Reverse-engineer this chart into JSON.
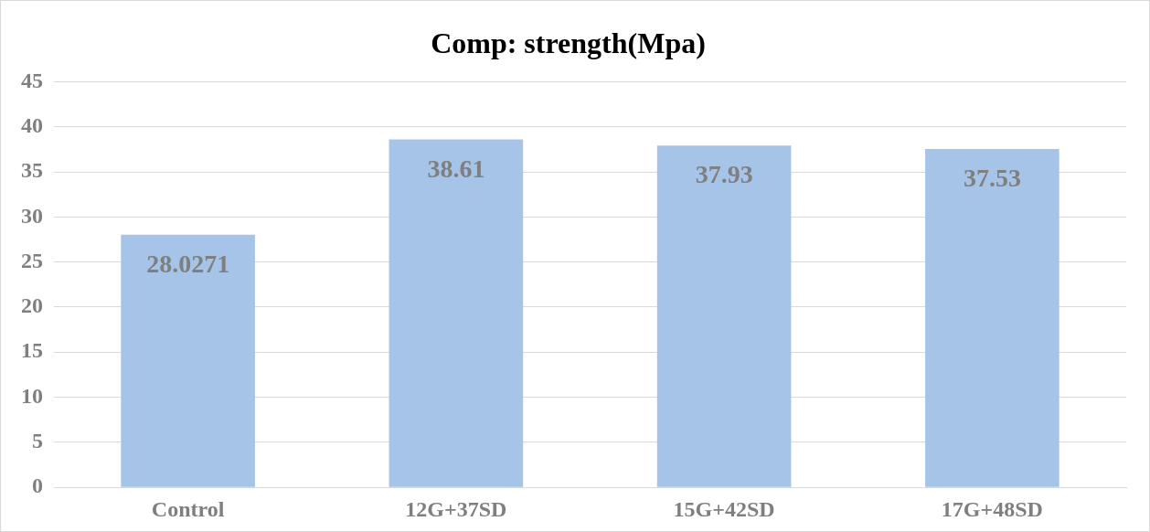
{
  "chart_data": {
    "type": "bar",
    "title": "Comp: strength(Mpa)",
    "categories": [
      "Control",
      "12G+37SD",
      "15G+42SD",
      "17G+48SD"
    ],
    "values": [
      28.0271,
      38.61,
      37.93,
      37.53
    ],
    "color": "#a6c4e8",
    "ylim": [
      0,
      45
    ],
    "yticks": [
      0,
      5,
      10,
      15,
      20,
      25,
      30,
      35,
      40,
      45
    ],
    "grid": "y",
    "data_labels": true,
    "legend": false
  }
}
